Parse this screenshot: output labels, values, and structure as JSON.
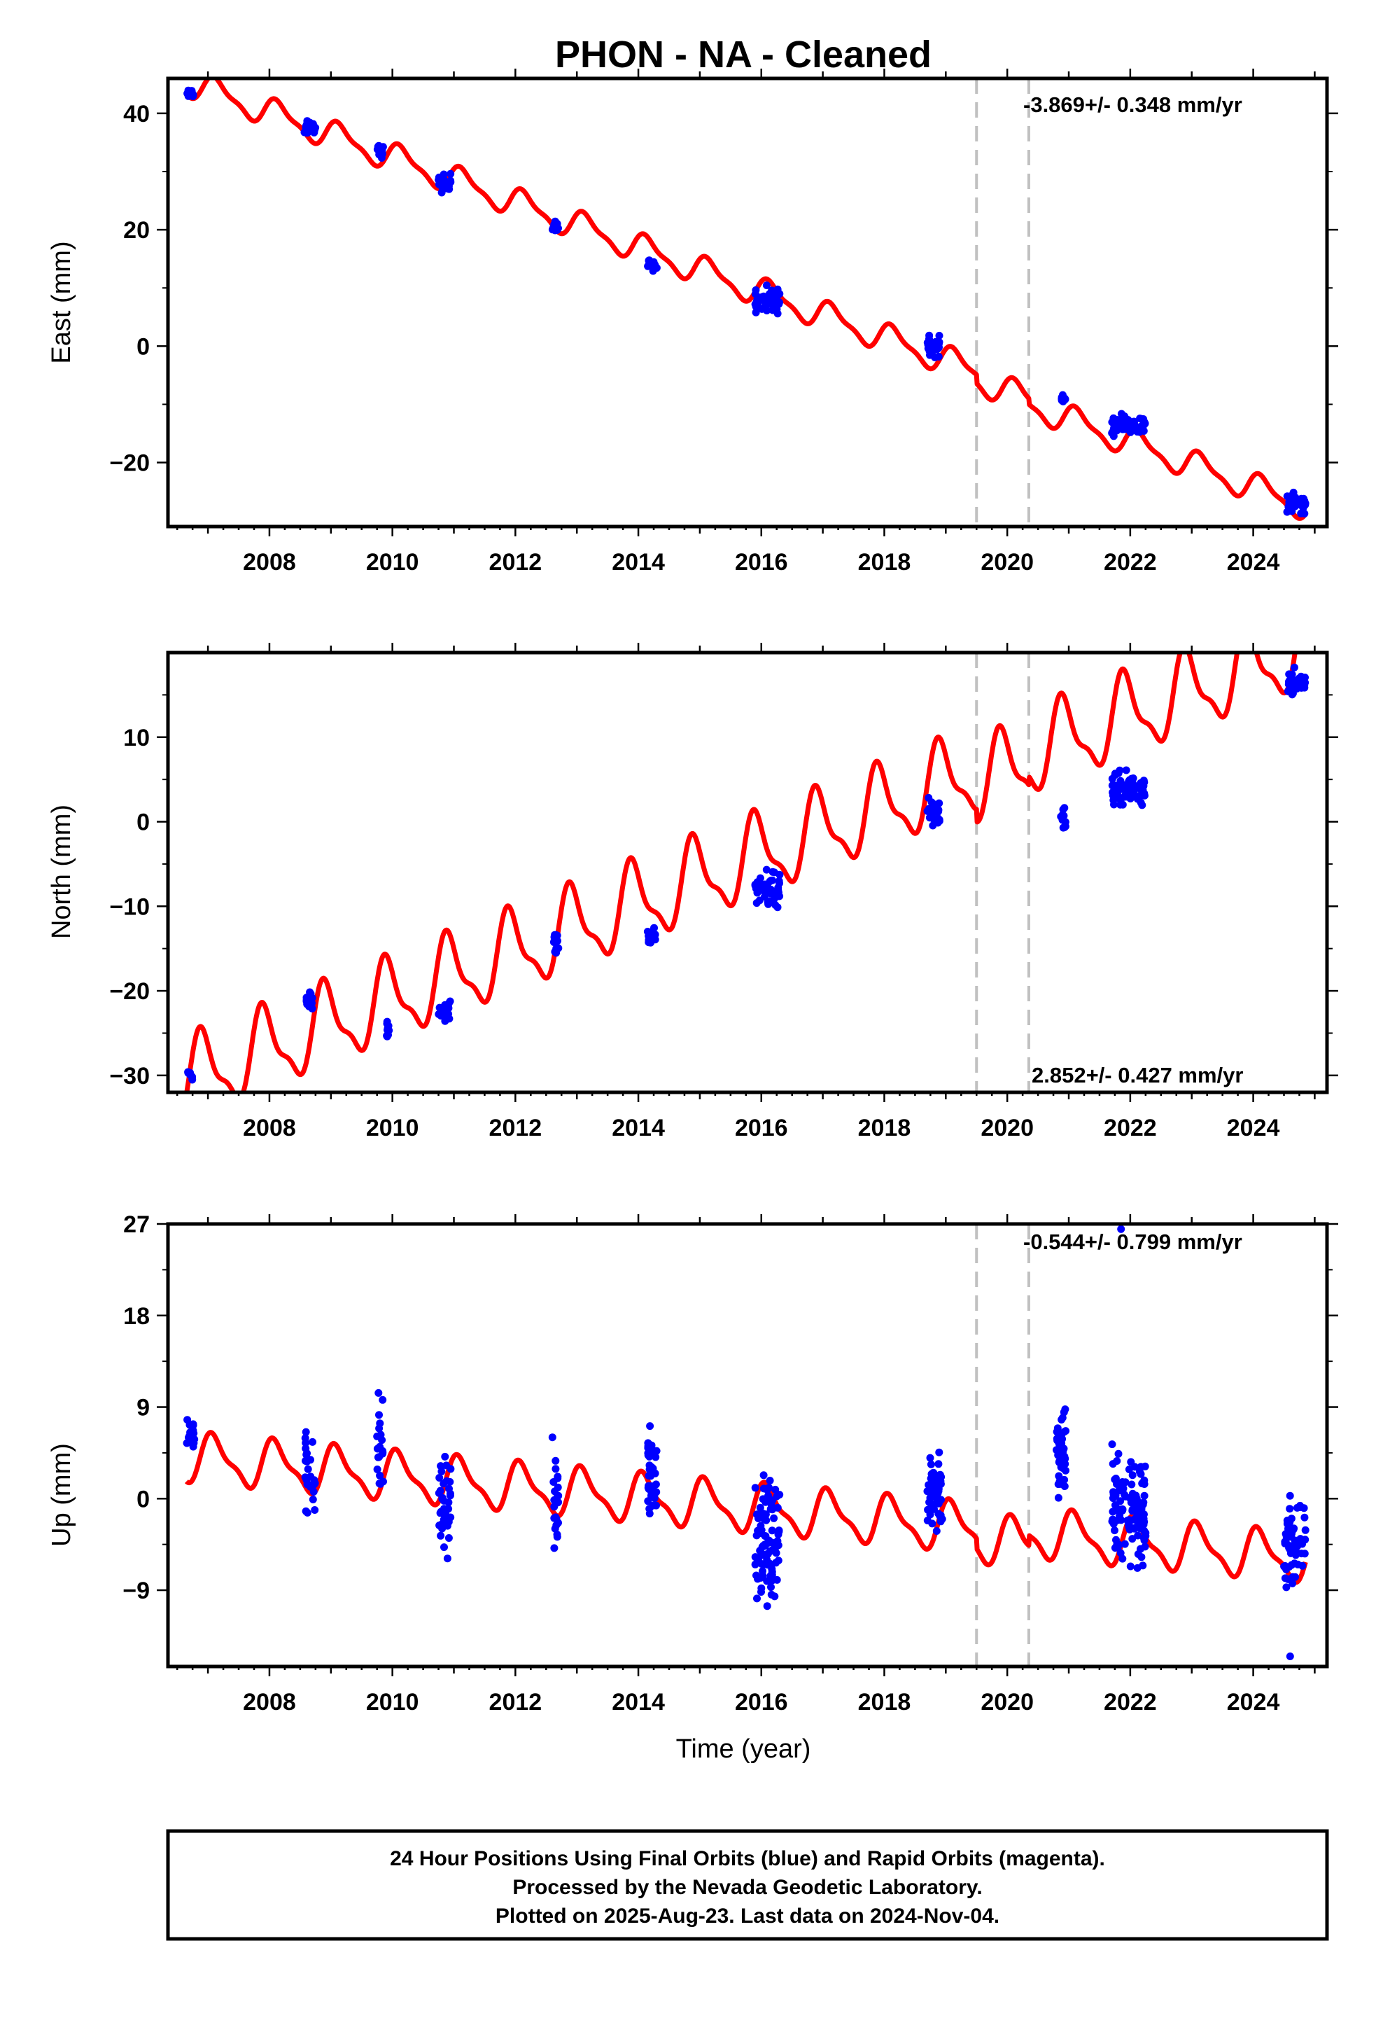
{
  "title": "PHON  - NA - Cleaned",
  "footer": {
    "line1": "24 Hour Positions Using Final Orbits (blue) and Rapid Orbits (magenta).",
    "line2": "Processed by the Nevada Geodetic Laboratory.",
    "line3": "Plotted on 2025-Aug-23. Last data on 2024-Nov-04."
  },
  "colors": {
    "data": "#0000ff",
    "model": "#ff0000",
    "break_line": "#c0c0c0",
    "frame": "#000000"
  },
  "chart_data": [
    {
      "type": "scatter",
      "component": "east",
      "ylabel": "East (mm)",
      "xlabel": "",
      "rate_text": "-3.869+/- 0.348 mm/yr",
      "rate_position": "top-right",
      "xlim": [
        2006.35,
        2025.2
      ],
      "ylim": [
        -31,
        46
      ],
      "xticks": [
        2008,
        2010,
        2012,
        2014,
        2016,
        2018,
        2020,
        2022,
        2024
      ],
      "yticks": [
        -20,
        0,
        20,
        40
      ],
      "ytick_labels": [
        "−20",
        "0",
        "20",
        "40"
      ],
      "breaks": [
        2019.5,
        2020.35
      ],
      "model": {
        "intercept": 45.2,
        "rate": -3.869,
        "t0": 2006.7,
        "seasonal_amp": 2.2,
        "seasonal_phase": 0.6,
        "offsets": [
          [
            2019.5,
            -1.5
          ],
          [
            2020.35,
            -1.0
          ]
        ]
      },
      "clusters": [
        {
          "t": [
            2006.65,
            2006.78
          ],
          "y": 43.5,
          "spread": 2.0,
          "n": 14
        },
        {
          "t": [
            2008.55,
            2008.75
          ],
          "y": 37.5,
          "spread": 3.0,
          "n": 30
        },
        {
          "t": [
            2009.75,
            2009.85
          ],
          "y": 33.5,
          "spread": 3.0,
          "n": 14
        },
        {
          "t": [
            2010.75,
            2010.95
          ],
          "y": 28.0,
          "spread": 4.0,
          "n": 30
        },
        {
          "t": [
            2012.6,
            2012.7
          ],
          "y": 20.5,
          "spread": 3.0,
          "n": 12
        },
        {
          "t": [
            2014.15,
            2014.3
          ],
          "y": 14.0,
          "spread": 3.0,
          "n": 16
        },
        {
          "t": [
            2015.9,
            2016.3
          ],
          "y": 8.0,
          "spread": 6.0,
          "n": 50
        },
        {
          "t": [
            2018.7,
            2018.9
          ],
          "y": 0.0,
          "spread": 5.0,
          "n": 30
        },
        {
          "t": [
            2020.85,
            2020.95
          ],
          "y": -9.0,
          "spread": 3.0,
          "n": 12
        },
        {
          "t": [
            2021.7,
            2022.25
          ],
          "y": -13.5,
          "spread": 5.0,
          "n": 70
        },
        {
          "t": [
            2024.55,
            2024.85
          ],
          "y": -27.0,
          "spread": 4.0,
          "n": 40
        }
      ]
    },
    {
      "type": "scatter",
      "component": "north",
      "ylabel": "North (mm)",
      "xlabel": "",
      "rate_text": "2.852+/- 0.427 mm/yr",
      "rate_position": "bottom-right",
      "xlim": [
        2006.35,
        2025.2
      ],
      "ylim": [
        -32,
        20
      ],
      "xticks": [
        2008,
        2010,
        2012,
        2014,
        2016,
        2018,
        2020,
        2022,
        2024
      ],
      "yticks": [
        -30,
        -20,
        -10,
        0,
        10
      ],
      "ytick_labels": [
        "−30",
        "−20",
        "−10",
        "0",
        "10"
      ],
      "breaks": [
        2019.5,
        2020.35
      ],
      "model": {
        "intercept": -30.5,
        "rate": 2.852,
        "t0": 2006.7,
        "seasonal_amp": 4.5,
        "seasonal_phase": 2.1,
        "offsets": [
          [
            2019.5,
            -1.5
          ],
          [
            2020.35,
            1.0
          ]
        ]
      },
      "clusters": [
        {
          "t": [
            2006.65,
            2006.75
          ],
          "y": -30.0,
          "spread": 2.0,
          "n": 8
        },
        {
          "t": [
            2008.6,
            2008.7
          ],
          "y": -21.0,
          "spread": 4.0,
          "n": 22
        },
        {
          "t": [
            2009.9,
            2009.95
          ],
          "y": -24.5,
          "spread": 3.0,
          "n": 10
        },
        {
          "t": [
            2010.75,
            2010.95
          ],
          "y": -22.5,
          "spread": 4.0,
          "n": 20
        },
        {
          "t": [
            2012.6,
            2012.7
          ],
          "y": -14.0,
          "spread": 4.0,
          "n": 14
        },
        {
          "t": [
            2014.15,
            2014.3
          ],
          "y": -13.5,
          "spread": 3.0,
          "n": 12
        },
        {
          "t": [
            2015.9,
            2016.3
          ],
          "y": -8.0,
          "spread": 6.0,
          "n": 50
        },
        {
          "t": [
            2018.7,
            2018.9
          ],
          "y": 1.0,
          "spread": 5.0,
          "n": 26
        },
        {
          "t": [
            2020.85,
            2020.95
          ],
          "y": 0.0,
          "spread": 4.0,
          "n": 12
        },
        {
          "t": [
            2021.7,
            2022.25
          ],
          "y": 3.5,
          "spread": 6.0,
          "n": 70
        },
        {
          "t": [
            2024.55,
            2024.85
          ],
          "y": 16.5,
          "spread": 4.0,
          "n": 40
        }
      ]
    },
    {
      "type": "scatter",
      "component": "up",
      "ylabel": "Up (mm)",
      "xlabel": "Time (year)",
      "rate_text": "-0.544+/- 0.799 mm/yr",
      "rate_position": "top-right",
      "xlim": [
        2006.35,
        2025.2
      ],
      "ylim": [
        -16.5,
        27
      ],
      "xticks": [
        2008,
        2010,
        2012,
        2014,
        2016,
        2018,
        2020,
        2022,
        2024
      ],
      "yticks": [
        -9,
        0,
        9,
        18,
        27
      ],
      "ytick_labels": [
        "−9",
        "0",
        "9",
        "18",
        "27"
      ],
      "breaks": [
        2019.5,
        2020.35
      ],
      "model": {
        "intercept": 4.0,
        "rate": -0.544,
        "t0": 2006.7,
        "seasonal_amp": 2.2,
        "seasonal_phase": 0.9,
        "offsets": [
          [
            2019.5,
            -1.0
          ],
          [
            2020.35,
            1.0
          ]
        ]
      },
      "clusters": [
        {
          "t": [
            2006.65,
            2006.78
          ],
          "y": 7.0,
          "spread": 7.0,
          "n": 16
        },
        {
          "t": [
            2008.55,
            2008.75
          ],
          "y": 2.5,
          "spread": 12.0,
          "n": 26
        },
        {
          "t": [
            2009.75,
            2009.85
          ],
          "y": 5.0,
          "spread": 14.0,
          "n": 20
        },
        {
          "t": [
            2010.75,
            2010.95
          ],
          "y": -1.0,
          "spread": 12.0,
          "n": 40
        },
        {
          "t": [
            2012.6,
            2012.7
          ],
          "y": 0.0,
          "spread": 14.0,
          "n": 24
        },
        {
          "t": [
            2014.15,
            2014.3
          ],
          "y": 2.5,
          "spread": 12.0,
          "n": 40
        },
        {
          "t": [
            2015.9,
            2016.3
          ],
          "y": -4.0,
          "spread": 16.0,
          "n": 90
        },
        {
          "t": [
            2018.7,
            2018.95
          ],
          "y": 1.0,
          "spread": 12.0,
          "n": 50
        },
        {
          "t": [
            2020.8,
            2020.95
          ],
          "y": 4.5,
          "spread": 16.0,
          "n": 40
        },
        {
          "t": [
            2021.7,
            2022.25
          ],
          "y": -1.0,
          "spread": 16.0,
          "n": 110
        },
        {
          "t": [
            2024.5,
            2024.85
          ],
          "y": -4.0,
          "spread": 14.0,
          "n": 60
        }
      ],
      "outliers": [
        {
          "t": 2021.85,
          "y": 26.5
        },
        {
          "t": 2024.6,
          "y": -15.5
        }
      ]
    }
  ]
}
